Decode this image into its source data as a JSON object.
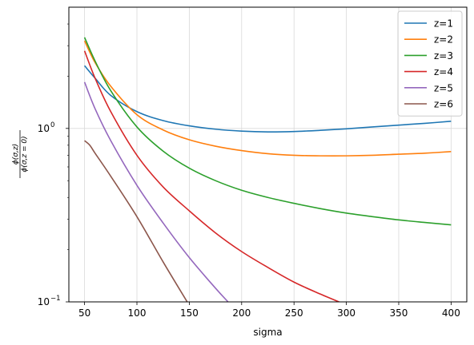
{
  "chart_data": {
    "type": "line",
    "title": "",
    "xlabel": "sigma",
    "ylabel": {
      "num": "ϕ(σ,z)",
      "den": "ϕ(σ,z = 0)"
    },
    "xlim": [
      35,
      415
    ],
    "ylim": [
      0.1,
      5.0
    ],
    "yscale": "log",
    "grid": true,
    "legend_position": "top-right",
    "x_ticks": [
      50,
      100,
      150,
      200,
      250,
      300,
      350,
      400
    ],
    "y_ticks": [
      {
        "value": 1.0,
        "base": "10",
        "exp": "0"
      },
      {
        "value": 0.1,
        "base": "10",
        "exp": "−1"
      }
    ],
    "series": [
      {
        "name": "z=1",
        "color": "#1f77b4",
        "x": [
          50,
          60,
          75,
          100,
          125,
          150,
          175,
          200,
          225,
          250,
          275,
          300,
          325,
          350,
          375,
          400
        ],
        "y": [
          2.3,
          1.95,
          1.55,
          1.25,
          1.11,
          1.035,
          0.99,
          0.965,
          0.955,
          0.96,
          0.975,
          0.995,
          1.02,
          1.045,
          1.07,
          1.1
        ]
      },
      {
        "name": "z=2",
        "color": "#ff7f0e",
        "x": [
          50,
          60,
          75,
          100,
          125,
          150,
          175,
          200,
          225,
          250,
          275,
          300,
          325,
          350,
          375,
          400
        ],
        "y": [
          3.2,
          2.4,
          1.75,
          1.2,
          0.98,
          0.86,
          0.79,
          0.745,
          0.715,
          0.7,
          0.695,
          0.695,
          0.7,
          0.71,
          0.72,
          0.735
        ]
      },
      {
        "name": "z=3",
        "color": "#2ca02c",
        "x": [
          50,
          60,
          75,
          100,
          125,
          150,
          175,
          200,
          225,
          250,
          275,
          300,
          325,
          350,
          375,
          400
        ],
        "y": [
          3.35,
          2.45,
          1.65,
          1.02,
          0.74,
          0.59,
          0.5,
          0.44,
          0.4,
          0.37,
          0.345,
          0.325,
          0.31,
          0.297,
          0.287,
          0.278
        ]
      },
      {
        "name": "z=4",
        "color": "#d62728",
        "x": [
          50,
          60,
          75,
          100,
          125,
          150,
          175,
          200,
          225,
          250,
          275,
          300
        ],
        "y": [
          2.8,
          1.95,
          1.25,
          0.7,
          0.46,
          0.335,
          0.25,
          0.195,
          0.158,
          0.13,
          0.111,
          0.096
        ]
      },
      {
        "name": "z=5",
        "color": "#9467bd",
        "x": [
          50,
          60,
          75,
          100,
          125,
          150,
          175,
          187
        ],
        "y": [
          1.85,
          1.3,
          0.85,
          0.47,
          0.285,
          0.18,
          0.12,
          0.1
        ]
      },
      {
        "name": "z=6",
        "color": "#8c564b",
        "x": [
          50,
          55,
          60,
          75,
          100,
          125,
          148
        ],
        "y": [
          0.85,
          0.8,
          0.72,
          0.53,
          0.31,
          0.17,
          0.1
        ]
      }
    ]
  }
}
